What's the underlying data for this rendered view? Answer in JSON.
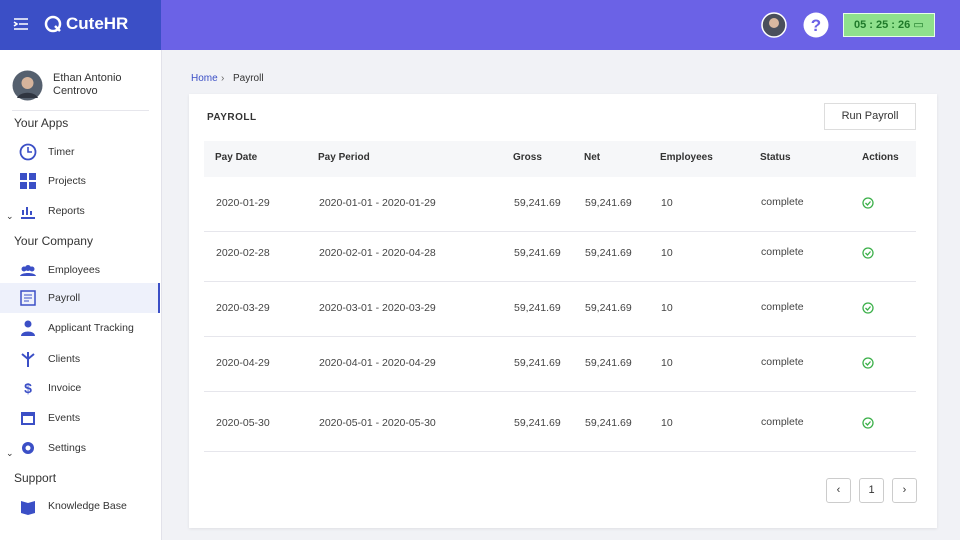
{
  "header": {
    "brand": "CuteHR",
    "timer": "05 : 25 : 26"
  },
  "sidebar": {
    "user": "Ethan Antonio Centrovo",
    "sections": [
      {
        "title": "Your Apps",
        "items": [
          "Timer",
          "Projects",
          "Reports"
        ]
      },
      {
        "title": "Your Company",
        "items": [
          "Employees",
          "Payroll",
          "Applicant Tracking",
          "Clients",
          "Invoice",
          "Events",
          "Settings"
        ]
      },
      {
        "title": "Support",
        "items": [
          "Knowledge Base"
        ]
      }
    ]
  },
  "breadcrumb": [
    "Home",
    "Payroll"
  ],
  "card": {
    "title": "PAYROLL",
    "button": "Run Payroll"
  },
  "table": {
    "columns": [
      "Pay Date",
      "Pay Period",
      "Gross",
      "Net",
      "Employees",
      "Status",
      "Actions"
    ],
    "rows": [
      [
        "2020-01-29",
        "2020-01-01 - 2020-01-29",
        "59,241.69",
        "59,241.69",
        "10",
        "complete"
      ],
      [
        "2020-02-28",
        "2020-02-01 - 2020-04-28",
        "59,241.69",
        "59,241.69",
        "10",
        "complete"
      ],
      [
        "2020-03-29",
        "2020-03-01 - 2020-03-29",
        "59,241.69",
        "59,241.69",
        "10",
        "complete"
      ],
      [
        "2020-04-29",
        "2020-04-01 - 2020-04-29",
        "59,241.69",
        "59,241.69",
        "10",
        "complete"
      ],
      [
        "2020-05-30",
        "2020-05-01 - 2020-05-30",
        "59,241.69",
        "59,241.69",
        "10",
        "complete"
      ]
    ]
  },
  "pagination": {
    "pages": [
      "1"
    ]
  }
}
